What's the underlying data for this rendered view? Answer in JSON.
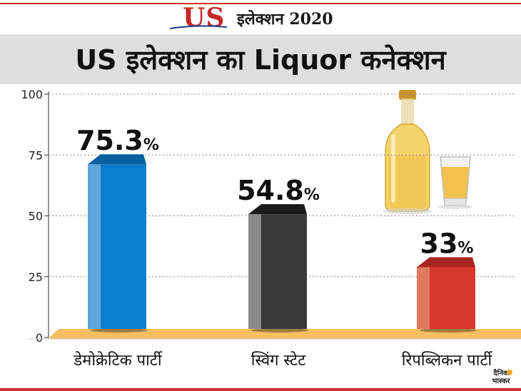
{
  "header": {
    "logo_us": "US",
    "logo_text": "इलेक्शन 2020"
  },
  "title": "US इलेक्शन का Liquor कनेक्शन",
  "watermark": "दैनिक भास्कर",
  "chart_data": {
    "type": "bar",
    "title": "US इलेक्शन का Liquor कनेक्शन",
    "categories": [
      "डेमोक्रेटिक पार्टी",
      "स्विंग स्टेट",
      "रिपब्लिकन पार्टी"
    ],
    "values": [
      75.3,
      54.8,
      33
    ],
    "value_labels": [
      "75.3",
      "54.8",
      "33"
    ],
    "value_suffix": "%",
    "ylim": [
      0,
      100
    ],
    "yticks": [
      0,
      25,
      50,
      75,
      100
    ],
    "ytick_labels": [
      "0",
      "25",
      "50",
      "75",
      "100"
    ],
    "colors": [
      "#0a7fd0",
      "#3a3a3a",
      "#d9362c"
    ],
    "light_colors": [
      "#5fa6db",
      "#8a8a8a",
      "#e07a5f"
    ],
    "dark_colors": [
      "#08609f",
      "#1a1a1a",
      "#a82620"
    ],
    "base_color": "#f7bf62",
    "xlabel": "",
    "ylabel": ""
  }
}
